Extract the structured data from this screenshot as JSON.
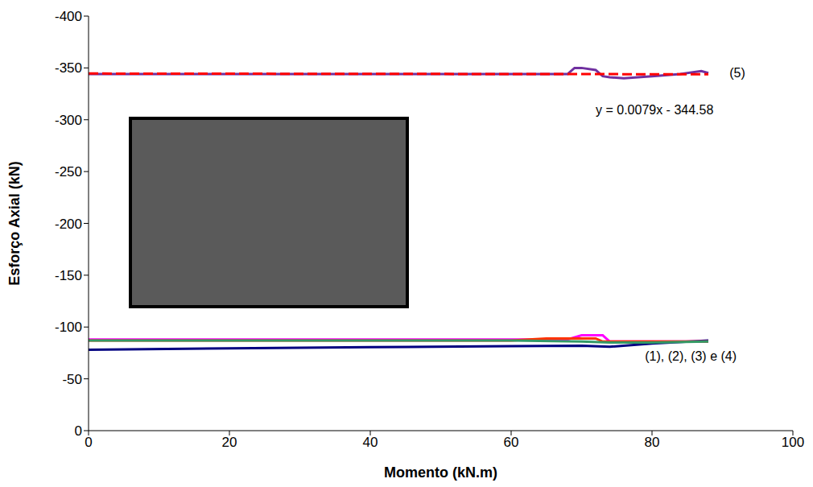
{
  "chart_data": {
    "type": "line",
    "xlabel": "Momento (kN.m)",
    "ylabel": "Esforço Axial (kN)",
    "xlim": [
      0,
      100
    ],
    "xticks": [
      0,
      20,
      40,
      60,
      80,
      100
    ],
    "ylim": [
      0,
      -400
    ],
    "yticks": [
      0,
      -50,
      -100,
      -150,
      -200,
      -250,
      -300,
      -350,
      -400
    ],
    "grid": false,
    "series": [
      {
        "color": "#7030a0",
        "line_style": "solid",
        "x": [
          0,
          20,
          40,
          60,
          66,
          68,
          69,
          70,
          72,
          73,
          74,
          76,
          80,
          84,
          87,
          88
        ],
        "values": [
          -344,
          -344,
          -344,
          -344,
          -344,
          -344,
          -350,
          -350,
          -348,
          -342,
          -341,
          -340,
          -342,
          -344,
          -347,
          -345
        ]
      },
      {
        "color": "#ff0000",
        "line_style": "dashed",
        "x": [
          0,
          88
        ],
        "values": [
          -344.58,
          -343.88
        ]
      },
      {
        "color": "#000080",
        "line_style": "solid",
        "x": [
          0,
          20,
          40,
          60,
          70,
          74,
          80,
          88
        ],
        "values": [
          -78,
          -79.5,
          -80.5,
          -81.5,
          -82,
          -81,
          -84,
          -87
        ]
      },
      {
        "color": "#ff00ff",
        "line_style": "solid",
        "x": [
          0,
          20,
          40,
          60,
          68,
          70,
          73,
          74,
          80,
          88
        ],
        "values": [
          -88,
          -88,
          -88,
          -88,
          -88,
          -92,
          -92,
          -86,
          -86,
          -86
        ]
      },
      {
        "color": "#ff3300",
        "line_style": "solid",
        "x": [
          0,
          20,
          40,
          60,
          65,
          72,
          73,
          80,
          88
        ],
        "values": [
          -87,
          -87,
          -87,
          -87,
          -89,
          -89,
          -86,
          -86,
          -86
        ]
      },
      {
        "color": "#339966",
        "line_style": "solid",
        "x": [
          0,
          20,
          40,
          60,
          70,
          74,
          80,
          88
        ],
        "values": [
          -87,
          -87,
          -87,
          -87,
          -86,
          -85,
          -85,
          -86
        ]
      }
    ],
    "annotations": [
      {
        "text": "(5)",
        "x": 91,
        "y": -345
      },
      {
        "text": "y = 0.0079x - 344.58",
        "x": 72,
        "y": -310
      },
      {
        "text": "(1), (2), (3) e (4)",
        "x": 79,
        "y": -72
      }
    ]
  }
}
